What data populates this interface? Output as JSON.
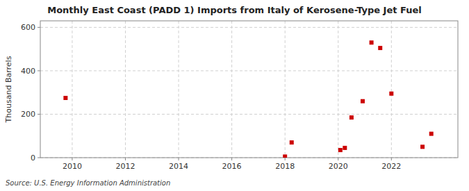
{
  "chart_data": {
    "type": "scatter",
    "title": "Monthly East Coast (PADD 1) Imports from Italy of Kerosene-Type Jet Fuel",
    "ylabel": "Thousand Barrels",
    "annotations": [
      "Source: U.S. Energy Information Administration"
    ],
    "x": [
      2009.75,
      2018.0,
      2018.25,
      2020.08,
      2020.25,
      2020.5,
      2020.92,
      2021.25,
      2021.58,
      2022.0,
      2023.17,
      2023.5
    ],
    "values": [
      275,
      5,
      70,
      35,
      45,
      185,
      260,
      530,
      505,
      295,
      50,
      110
    ],
    "color": "#cc0000",
    "marker": "square",
    "xlim": [
      2008.8,
      2024.5
    ],
    "xticks": [
      2010,
      2012,
      2014,
      2016,
      2018,
      2020,
      2022
    ],
    "ylim": [
      0,
      630
    ],
    "yticks": [
      0,
      200,
      400,
      600
    ],
    "grid": true
  }
}
